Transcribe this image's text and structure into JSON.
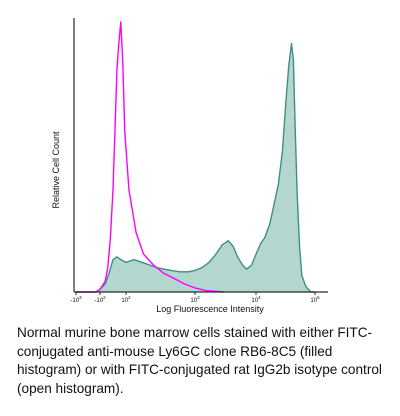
{
  "chart_data": {
    "type": "area",
    "xlabel": "Log Fluorescence Intensity",
    "ylabel": "Relative Cell Count",
    "xscale": "log (biexponential)",
    "x_ticks": [
      {
        "label": "-10",
        "sup": "3",
        "value": -1000
      },
      {
        "label": "-10",
        "sup": "2",
        "value": -100
      },
      {
        "label": "10",
        "sup": "2",
        "value": 100
      },
      {
        "label": "10",
        "sup": "3",
        "value": 1000
      },
      {
        "label": "10",
        "sup": "4",
        "value": 10000
      },
      {
        "label": "10",
        "sup": "5",
        "value": 100000
      }
    ],
    "xlim": [
      -1000,
      150000
    ],
    "ylim": [
      0,
      1
    ],
    "grid": false,
    "series": [
      {
        "role": "filled",
        "color": "#3f8f85",
        "fill": "#b3d6cf",
        "x": [
          -1000,
          -400,
          -150,
          -100,
          -60,
          -30,
          0,
          30,
          60,
          100,
          130,
          170,
          220,
          280,
          350,
          450,
          600,
          800,
          1000,
          1300,
          1700,
          2200,
          2800,
          3500,
          4200,
          5000,
          6000,
          7000,
          8500,
          10000,
          12000,
          14000,
          17000,
          20000,
          24000,
          28000,
          32000,
          36000,
          40000,
          43000,
          46000,
          50000,
          55000,
          60000,
          70000,
          85000,
          100000
        ],
        "y": [
          0.0,
          0.0,
          0.0,
          0.01,
          0.03,
          0.07,
          0.12,
          0.13,
          0.12,
          0.11,
          0.12,
          0.11,
          0.1,
          0.09,
          0.085,
          0.08,
          0.075,
          0.075,
          0.08,
          0.09,
          0.11,
          0.14,
          0.175,
          0.19,
          0.17,
          0.13,
          0.1,
          0.085,
          0.1,
          0.14,
          0.18,
          0.2,
          0.25,
          0.32,
          0.4,
          0.52,
          0.7,
          0.84,
          0.92,
          0.86,
          0.62,
          0.36,
          0.16,
          0.06,
          0.02,
          0.0,
          0.0
        ]
      },
      {
        "role": "open",
        "color": "#ff00ff",
        "x": [
          -1000,
          -400,
          -150,
          -100,
          -60,
          -40,
          -20,
          0,
          15,
          30,
          45,
          60,
          75,
          90,
          110,
          140,
          180,
          250,
          350,
          500,
          700,
          1000,
          1500,
          3000
        ],
        "y": [
          0.0,
          0.0,
          0.0,
          0.01,
          0.04,
          0.09,
          0.2,
          0.38,
          0.6,
          0.82,
          0.92,
          1.0,
          0.85,
          0.6,
          0.38,
          0.22,
          0.14,
          0.1,
          0.07,
          0.05,
          0.03,
          0.015,
          0.005,
          0.0
        ]
      }
    ]
  },
  "caption": "Normal murine bone marrow cells stained with either FITC-conjugated anti-mouse Ly6GC clone RB6-8C5 (filled histogram) or with FITC-conjugated rat IgG2b isotype control (open histogram).",
  "colors": {
    "axis": "#2a2a2a",
    "text": "#111111"
  }
}
